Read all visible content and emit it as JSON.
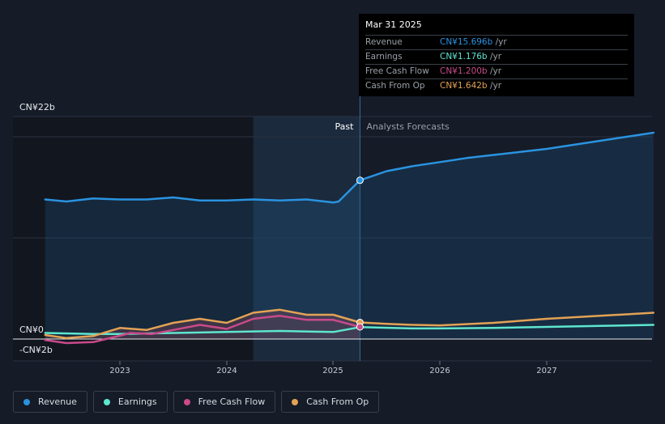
{
  "chart_data": {
    "type": "line",
    "y_axis": {
      "top_label": "CN¥22b",
      "zero_label": "CN¥0",
      "bottom_label": "-CN¥2b",
      "ylim": [
        -2,
        22
      ]
    },
    "x_axis": {
      "ticks": [
        "2023",
        "2024",
        "2025",
        "2026",
        "2027"
      ],
      "xlim": [
        2022.3,
        2028.0
      ]
    },
    "regions": {
      "past_label": "Past",
      "forecast_label": "Analysts Forecasts",
      "split": 2025.25,
      "highlight_start": 2024.25
    },
    "series": [
      {
        "name": "Revenue",
        "color": "#2a93e0",
        "x": [
          2022.3,
          2022.5,
          2022.75,
          2023.0,
          2023.25,
          2023.5,
          2023.75,
          2024.0,
          2024.25,
          2024.5,
          2024.75,
          2025.0,
          2025.05,
          2025.25,
          2025.5,
          2025.75,
          2026.0,
          2026.25,
          2026.5,
          2026.75,
          2027.0,
          2027.25,
          2027.5,
          2027.75,
          2028.0
        ],
        "y": [
          13.8,
          13.6,
          13.9,
          13.8,
          13.8,
          14.0,
          13.7,
          13.7,
          13.8,
          13.7,
          13.8,
          13.5,
          13.6,
          15.696,
          16.6,
          17.1,
          17.5,
          17.9,
          18.2,
          18.5,
          18.8,
          19.2,
          19.6,
          20.0,
          20.4
        ]
      },
      {
        "name": "Earnings",
        "color": "#5ee6cf",
        "x": [
          2022.3,
          2022.75,
          2023.0,
          2023.5,
          2024.0,
          2024.5,
          2025.0,
          2025.25,
          2025.75,
          2026.0,
          2026.5,
          2027.0,
          2027.5,
          2028.0
        ],
        "y": [
          0.6,
          0.5,
          0.5,
          0.6,
          0.7,
          0.8,
          0.7,
          1.176,
          1.05,
          1.05,
          1.1,
          1.2,
          1.3,
          1.4
        ]
      },
      {
        "name": "Free Cash Flow",
        "color": "#c94a8a",
        "x": [
          2022.3,
          2022.5,
          2022.75,
          2022.95,
          2023.1,
          2023.3,
          2023.5,
          2023.75,
          2024.0,
          2024.25,
          2024.5,
          2024.75,
          2025.0,
          2025.25
        ],
        "y": [
          -0.1,
          -0.4,
          -0.3,
          0.2,
          0.6,
          0.5,
          0.9,
          1.4,
          1.0,
          2.0,
          2.3,
          1.9,
          1.9,
          1.2
        ]
      },
      {
        "name": "Cash From Op",
        "color": "#e3a255",
        "x": [
          2022.3,
          2022.5,
          2022.75,
          2023.0,
          2023.25,
          2023.5,
          2023.75,
          2024.0,
          2024.25,
          2024.5,
          2024.75,
          2025.0,
          2025.25,
          2025.5,
          2025.75,
          2026.0,
          2026.5,
          2027.0,
          2027.5,
          2028.0
        ],
        "y": [
          0.4,
          0.1,
          0.3,
          1.1,
          0.9,
          1.6,
          2.0,
          1.6,
          2.6,
          2.9,
          2.4,
          2.4,
          1.642,
          1.5,
          1.4,
          1.35,
          1.6,
          2.0,
          2.3,
          2.6
        ]
      }
    ]
  },
  "tooltip": {
    "date": "Mar 31 2025",
    "rows": [
      {
        "label": "Revenue",
        "value": "CN¥15.696b",
        "unit": "/yr",
        "color": "#2a93e0"
      },
      {
        "label": "Earnings",
        "value": "CN¥1.176b",
        "unit": "/yr",
        "color": "#5ee6cf"
      },
      {
        "label": "Free Cash Flow",
        "value": "CN¥1.200b",
        "unit": "/yr",
        "color": "#c94a8a"
      },
      {
        "label": "Cash From Op",
        "value": "CN¥1.642b",
        "unit": "/yr",
        "color": "#e3a255"
      }
    ]
  },
  "legend": [
    {
      "label": "Revenue",
      "color": "#2a93e0"
    },
    {
      "label": "Earnings",
      "color": "#5ee6cf"
    },
    {
      "label": "Free Cash Flow",
      "color": "#c94a8a"
    },
    {
      "label": "Cash From Op",
      "color": "#e3a255"
    }
  ]
}
